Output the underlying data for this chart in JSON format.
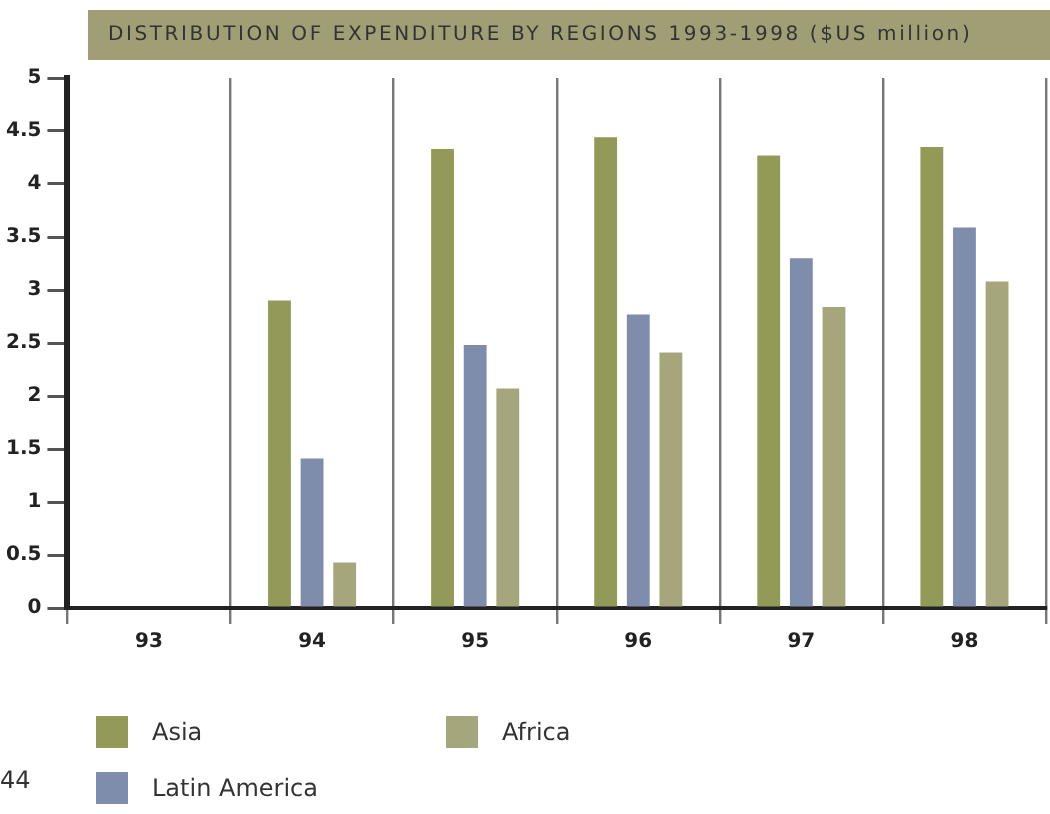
{
  "chart_data": {
    "type": "bar",
    "title": "DISTRIBUTION OF EXPENDITURE BY REGIONS 1993-1998 ($US million)",
    "categories": [
      "93",
      "94",
      "95",
      "96",
      "97",
      "98"
    ],
    "series": [
      {
        "name": "Asia",
        "color": "#939957",
        "values": [
          0,
          2.9,
          4.33,
          4.44,
          4.27,
          4.35
        ]
      },
      {
        "name": "Latin America",
        "color": "#7d8dab",
        "values": [
          0,
          1.41,
          2.48,
          2.77,
          3.3,
          3.59
        ]
      },
      {
        "name": "Africa",
        "color": "#a6a67c",
        "values": [
          0,
          0.43,
          2.07,
          2.41,
          2.84,
          3.08
        ]
      }
    ],
    "ylim": [
      0,
      5
    ],
    "yticks": [
      0,
      0.5,
      1,
      1.5,
      2,
      2.5,
      3,
      3.5,
      4,
      4.5,
      5
    ],
    "grid": "x",
    "legend": "bottom",
    "annotations": [
      "44"
    ]
  }
}
